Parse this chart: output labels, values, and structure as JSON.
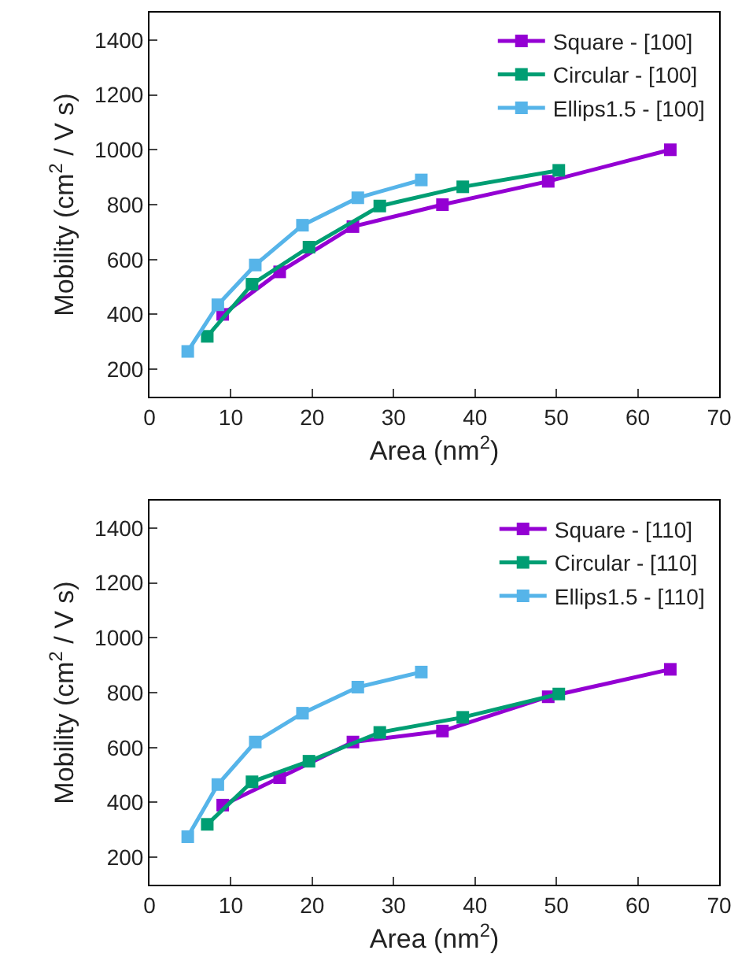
{
  "chart_data": [
    {
      "type": "line",
      "xlabel": "Area (nm$^{2}$)",
      "ylabel": "Mobility (cm$^{2}$ / V s)",
      "xlim": [
        0,
        70
      ],
      "xticks": [
        0,
        10,
        20,
        30,
        40,
        50,
        60,
        70
      ],
      "ylim": [
        100,
        1500
      ],
      "yticks": [
        200,
        400,
        600,
        800,
        1000,
        1200,
        1400
      ],
      "grid": false,
      "legend": "top right",
      "marker": "square",
      "line_style": "solid",
      "series": [
        {
          "name": "Square - [100]",
          "color": "#9400d3",
          "x": [
            9,
            16,
            25,
            36,
            49,
            64
          ],
          "values": [
            400,
            555,
            720,
            800,
            885,
            1000
          ]
        },
        {
          "name": "Circular - [100]",
          "color": "#009e73",
          "x": [
            7.1,
            12.6,
            19.6,
            28.3,
            38.5,
            50.3
          ],
          "values": [
            320,
            510,
            645,
            795,
            865,
            925
          ]
        },
        {
          "name": "Ellips1.5 - [100]",
          "color": "#56b4e9",
          "x": [
            4.7,
            8.4,
            13,
            18.8,
            25.6,
            33.4
          ],
          "values": [
            265,
            435,
            580,
            725,
            825,
            890
          ]
        }
      ]
    },
    {
      "type": "line",
      "xlabel": "Area (nm$^{2}$)",
      "ylabel": "Mobility (cm$^{2}$ / V s)",
      "xlim": [
        0,
        70
      ],
      "xticks": [
        0,
        10,
        20,
        30,
        40,
        50,
        60,
        70
      ],
      "ylim": [
        100,
        1500
      ],
      "yticks": [
        200,
        400,
        600,
        800,
        1000,
        1200,
        1400
      ],
      "grid": false,
      "legend": "top right",
      "marker": "square",
      "line_style": "solid",
      "series": [
        {
          "name": "Square - [110]",
          "color": "#9400d3",
          "x": [
            9,
            16,
            25,
            36,
            49,
            64
          ],
          "values": [
            390,
            490,
            620,
            660,
            785,
            885
          ]
        },
        {
          "name": "Circular - [110]",
          "color": "#009e73",
          "x": [
            7.1,
            12.6,
            19.6,
            28.3,
            38.5,
            50.3
          ],
          "values": [
            320,
            475,
            550,
            655,
            710,
            795
          ]
        },
        {
          "name": "Ellips1.5 - [110]",
          "color": "#56b4e9",
          "x": [
            4.7,
            8.4,
            13,
            18.8,
            25.6,
            33.4
          ],
          "values": [
            275,
            465,
            620,
            725,
            820,
            875
          ]
        }
      ]
    }
  ]
}
